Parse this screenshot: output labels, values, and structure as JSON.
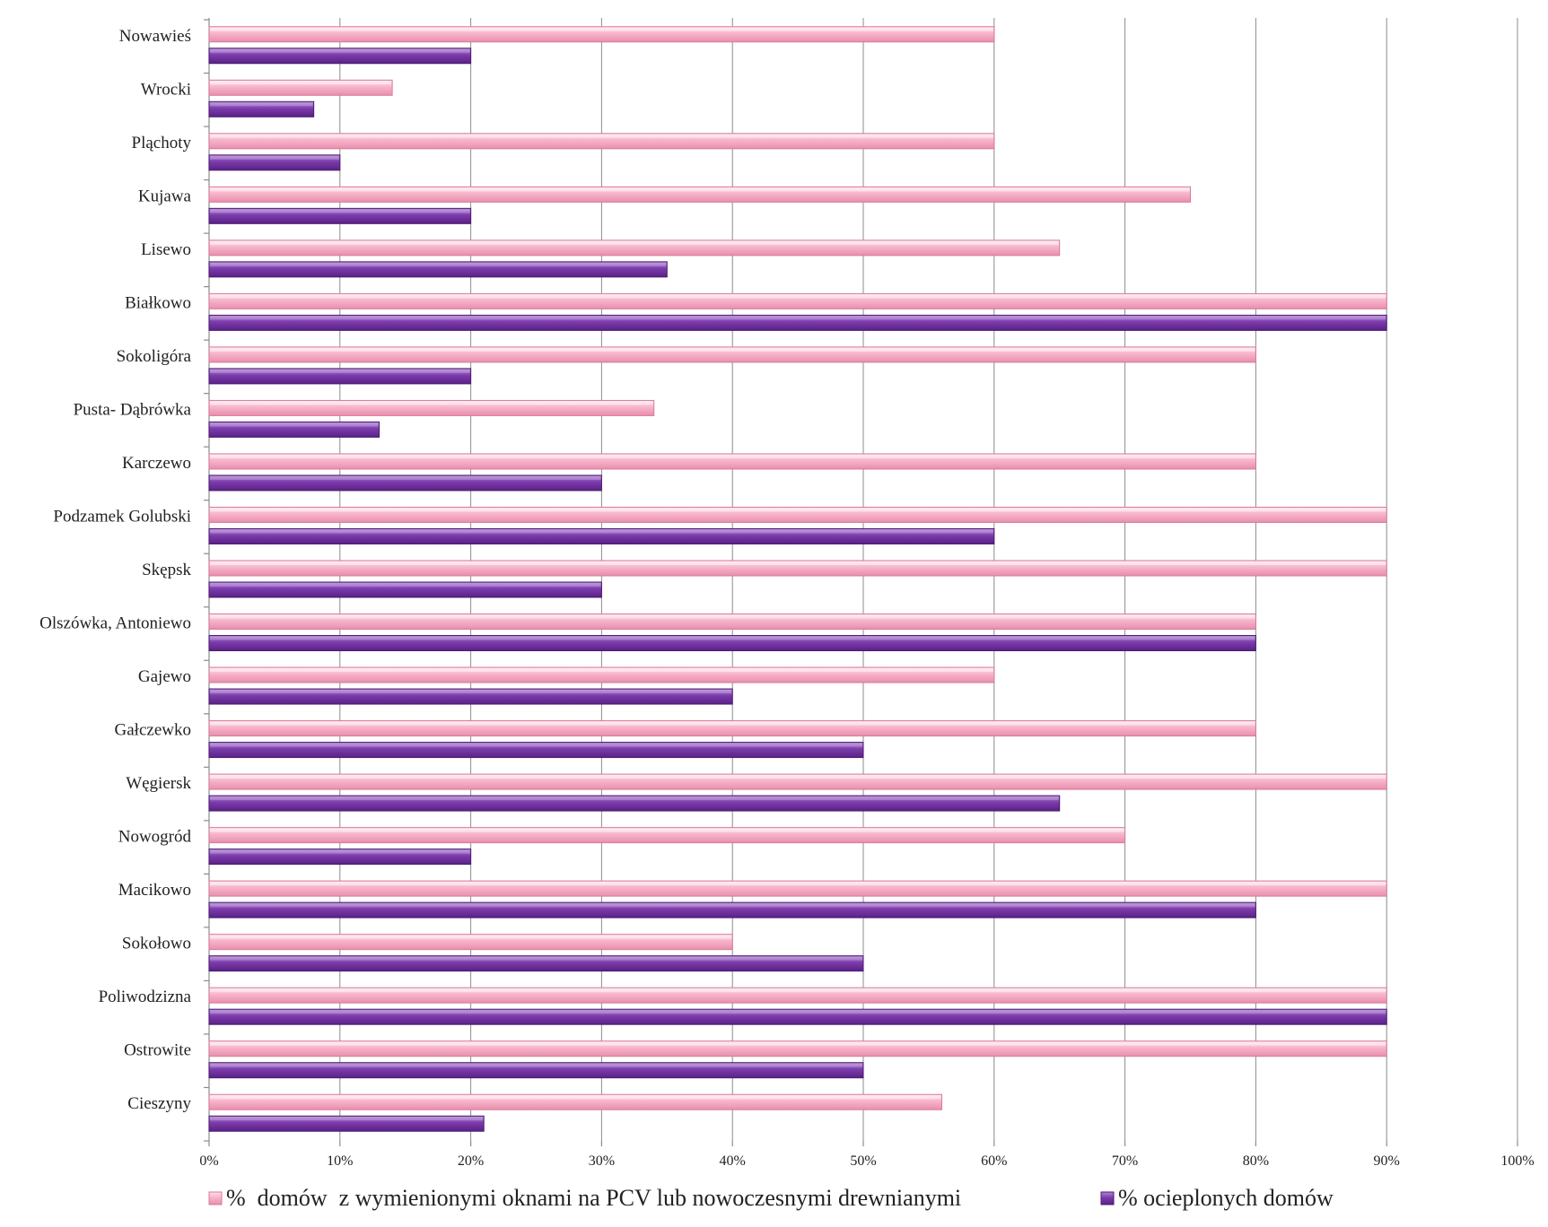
{
  "chart_data": {
    "type": "bar",
    "orientation": "horizontal",
    "categories": [
      "Nowawieś",
      "Wrocki",
      "Pląchoty",
      "Kujawa",
      "Lisewo",
      "Białkowo",
      "Sokoligóra",
      "Pusta- Dąbrówka",
      "Karczewo",
      "Podzamek Golubski",
      "Skępsk",
      "Olszówka, Antoniewo",
      "Gajewo",
      "Gałczewko",
      "Węgiersk",
      "Nowogród",
      "Macikowo",
      "Sokołowo",
      "Poliwodzizna",
      "Ostrowite",
      "Cieszyny"
    ],
    "series": [
      {
        "name": "%  domów  z wymienionymi oknami na PCV lub nowoczesnymi drewnianymi",
        "color": "#f4a7c0",
        "values": [
          60,
          14,
          60,
          75,
          65,
          90,
          80,
          34,
          80,
          90,
          90,
          80,
          60,
          80,
          90,
          70,
          90,
          40,
          90,
          90,
          56
        ]
      },
      {
        "name": "% ocieplonych domów",
        "color": "#7a3aa8",
        "values": [
          20,
          8,
          10,
          20,
          35,
          90,
          20,
          13,
          30,
          60,
          30,
          80,
          40,
          50,
          65,
          20,
          80,
          50,
          90,
          50,
          21
        ]
      }
    ],
    "xlim": [
      0,
      100
    ],
    "xticks": [
      "0%",
      "10%",
      "20%",
      "30%",
      "40%",
      "50%",
      "60%",
      "70%",
      "80%",
      "90%",
      "100%"
    ],
    "grid": true,
    "legend_position": "bottom"
  }
}
